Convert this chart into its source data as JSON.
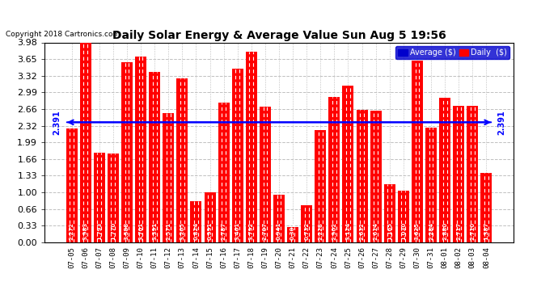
{
  "title": "Daily Solar Energy & Average Value Sun Aug 5 19:56",
  "copyright": "Copyright 2018 Cartronics.com",
  "average": 2.391,
  "average_label": "2.391",
  "bar_color": "#FF0000",
  "avg_line_color": "#0000FF",
  "background_color": "#FFFFFF",
  "grid_color": "#C0C0C0",
  "ylim": [
    0,
    3.98
  ],
  "yticks": [
    0.0,
    0.33,
    0.66,
    1.0,
    1.33,
    1.66,
    1.99,
    2.32,
    2.66,
    2.99,
    3.32,
    3.65,
    3.98
  ],
  "categories": [
    "07-05",
    "07-06",
    "07-07",
    "07-08",
    "07-09",
    "07-10",
    "07-11",
    "07-12",
    "07-13",
    "07-14",
    "07-15",
    "07-16",
    "07-17",
    "07-18",
    "07-19",
    "07-20",
    "07-21",
    "07-22",
    "07-23",
    "07-24",
    "07-25",
    "07-26",
    "07-27",
    "07-28",
    "07-29",
    "07-30",
    "07-31",
    "08-01",
    "08-02",
    "08-03",
    "08-04"
  ],
  "values": [
    2.272,
    3.983,
    1.793,
    1.77,
    3.588,
    3.701,
    3.391,
    2.571,
    3.265,
    0.824,
    0.991,
    2.787,
    3.461,
    3.792,
    2.707,
    0.941,
    0.3,
    0.732,
    2.228,
    2.902,
    3.124,
    2.632,
    2.614,
    1.165,
    1.03,
    3.625,
    2.284,
    2.88,
    2.717,
    2.71,
    1.387
  ],
  "legend_avg_color": "#0000CC",
  "legend_daily_color": "#FF0000",
  "legend_avg_text": "Average ($)",
  "legend_daily_text": "Daily  ($)"
}
